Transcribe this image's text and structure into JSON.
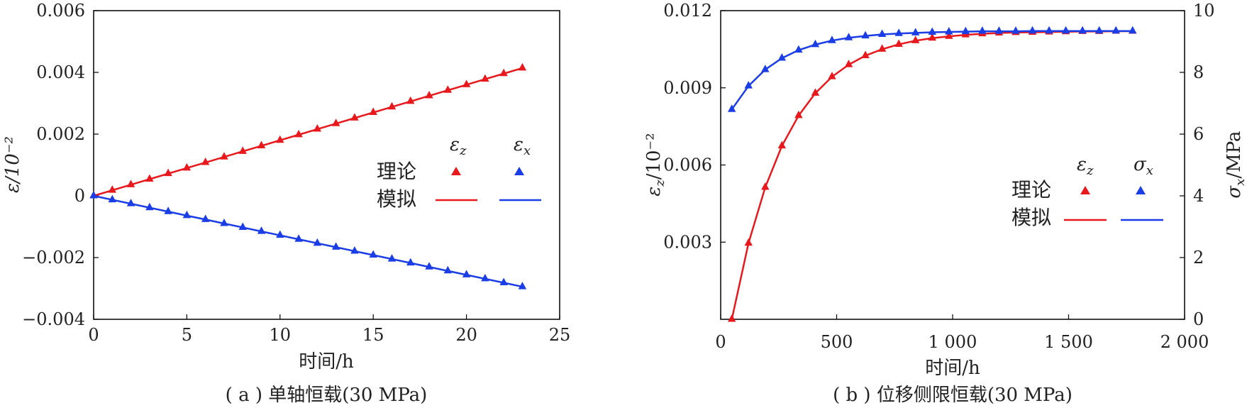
{
  "chart_data": [
    {
      "type": "line",
      "caption": "( a ) 单轴恒载(30 MPa)",
      "xlabel": "时间/h",
      "ylabel": "ε/10⁻²",
      "xlim": [
        0,
        25
      ],
      "ylim": [
        -0.004,
        0.006
      ],
      "xticks": [
        0,
        5,
        10,
        15,
        20,
        25
      ],
      "xtick_labels": [
        "0",
        "5",
        "10",
        "15",
        "20",
        "25"
      ],
      "yticks": [
        -0.004,
        -0.002,
        0,
        0.002,
        0.004,
        0.006
      ],
      "ytick_labels": [
        "−0.004",
        "−0.002",
        "0",
        "0.002",
        "0.004",
        "0.006"
      ],
      "legend": {
        "position": "right-middle",
        "row_labels": [
          "理论",
          "模拟"
        ],
        "col_symbols": [
          "ε",
          "ε"
        ],
        "col_subscripts": [
          "z",
          "x"
        ]
      },
      "x": [
        0,
        1,
        2,
        3,
        4,
        5,
        6,
        7,
        8,
        9,
        10,
        11,
        12,
        13,
        14,
        15,
        16,
        17,
        18,
        19,
        20,
        21,
        22,
        23
      ],
      "series": [
        {
          "name": "ε_z",
          "color": "#e8191d",
          "values": [
            0,
            0.00018,
            0.00036,
            0.00054,
            0.00072,
            0.0009,
            0.00108,
            0.00126,
            0.00144,
            0.00162,
            0.0018,
            0.00198,
            0.00216,
            0.00234,
            0.00252,
            0.0027,
            0.00288,
            0.00306,
            0.00324,
            0.00342,
            0.0036,
            0.00378,
            0.00396,
            0.00414
          ]
        },
        {
          "name": "ε_x",
          "color": "#1a3de6",
          "values": [
            0,
            -0.000128,
            -0.000256,
            -0.000384,
            -0.000512,
            -0.00064,
            -0.000768,
            -0.000896,
            -0.001024,
            -0.001152,
            -0.00128,
            -0.001408,
            -0.001536,
            -0.001664,
            -0.001792,
            -0.00192,
            -0.002048,
            -0.002176,
            -0.002304,
            -0.002432,
            -0.00256,
            -0.002688,
            -0.002816,
            -0.002944
          ]
        }
      ]
    },
    {
      "type": "line",
      "caption": "( b ) 位移侧限恒载(30 MPa)",
      "xlabel": "时间/h",
      "ylabel_left": "ε",
      "ylabel_left_sub": "z",
      "ylabel_left_suffix": "/10⁻²",
      "ylabel_right": "σ",
      "ylabel_right_sub": "x",
      "ylabel_right_suffix": "/MPa",
      "xlim": [
        0,
        2000
      ],
      "ylim_left": [
        0,
        0.012
      ],
      "ylim_right": [
        0,
        10
      ],
      "xticks": [
        0,
        500,
        1000,
        1500,
        2000
      ],
      "xtick_labels": [
        "0",
        "500",
        "1 000",
        "1 500",
        "2 000"
      ],
      "yticks_left": [
        0.003,
        0.006,
        0.009,
        0.012
      ],
      "ytick_left_labels": [
        "0.003",
        "0.006",
        "0.009",
        "0.012"
      ],
      "yticks_right": [
        0,
        2,
        4,
        6,
        8,
        10
      ],
      "ytick_right_labels": [
        "0",
        "2",
        "4",
        "6",
        "8",
        "10"
      ],
      "legend": {
        "position": "right-middle",
        "row_labels": [
          "理论",
          "模拟"
        ],
        "col_symbols": [
          "ε",
          "σ"
        ],
        "col_subscripts": [
          "z",
          "x"
        ]
      },
      "x": [
        48,
        120,
        192,
        264,
        336,
        408,
        480,
        552,
        624,
        696,
        768,
        840,
        912,
        984,
        1056,
        1128,
        1200,
        1272,
        1344,
        1416,
        1488,
        1560,
        1632,
        1704,
        1776
      ],
      "series": [
        {
          "name": "ε_z",
          "color": "#e8191d",
          "axis": "left",
          "values": [
            0,
            0.00296,
            0.00513,
            0.00674,
            0.00792,
            0.00879,
            0.00943,
            0.0099,
            0.01025,
            0.0105,
            0.01069,
            0.01083,
            0.01093,
            0.011,
            0.01106,
            0.0111,
            0.01113,
            0.01115,
            0.01116,
            0.01117,
            0.01118,
            0.01119,
            0.01119,
            0.0112,
            0.0112
          ]
        },
        {
          "name": "σ_x",
          "color": "#1a3de6",
          "axis": "right",
          "values": [
            6.8,
            7.56,
            8.09,
            8.46,
            8.72,
            8.9,
            9.03,
            9.12,
            9.18,
            9.23,
            9.26,
            9.28,
            9.3,
            9.31,
            9.32,
            9.33,
            9.33,
            9.33,
            9.34,
            9.34,
            9.34,
            9.34,
            9.34,
            9.34,
            9.34
          ]
        }
      ]
    }
  ]
}
